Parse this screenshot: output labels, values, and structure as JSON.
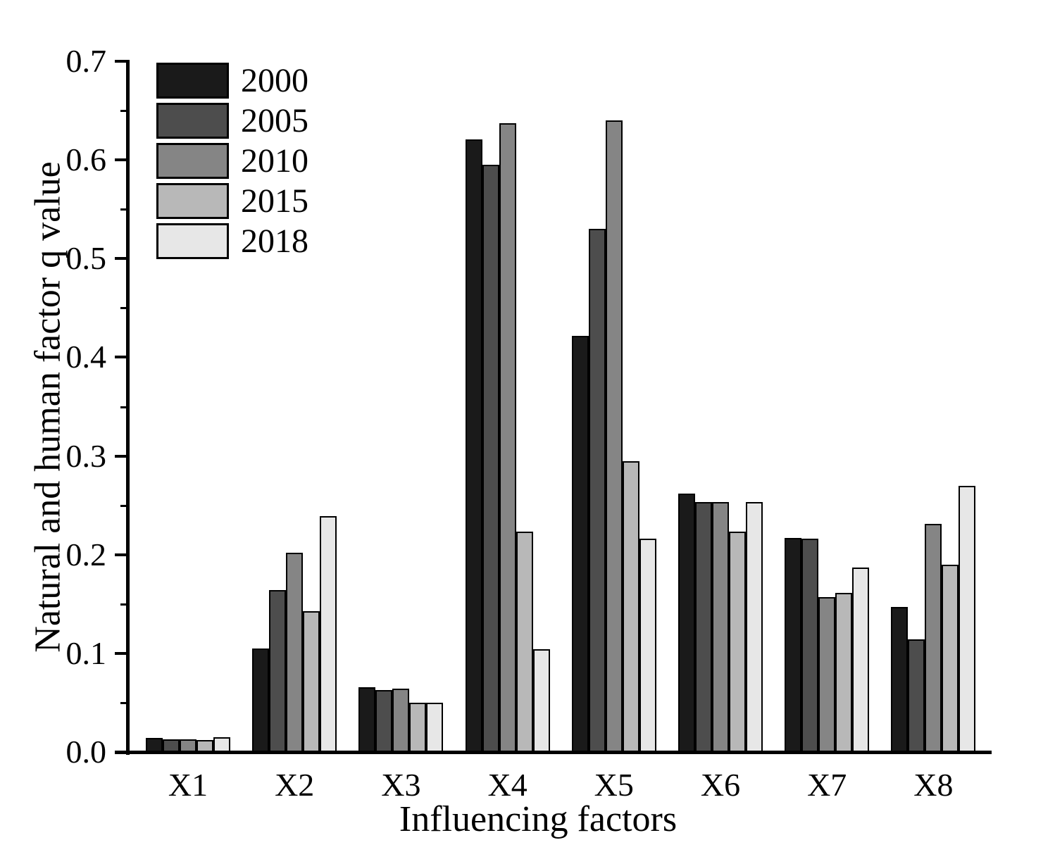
{
  "chart_data": {
    "type": "bar",
    "title": "",
    "xlabel": "Influencing factors",
    "ylabel": "Natural and human factor q value",
    "categories": [
      "X1",
      "X2",
      "X3",
      "X4",
      "X5",
      "X6",
      "X7",
      "X8"
    ],
    "series": [
      {
        "name": "2000",
        "color": "#1a1a1a",
        "values": [
          0.014,
          0.105,
          0.066,
          0.621,
          0.422,
          0.262,
          0.217,
          0.147
        ]
      },
      {
        "name": "2005",
        "color": "#4d4d4d",
        "values": [
          0.013,
          0.164,
          0.063,
          0.595,
          0.53,
          0.253,
          0.216,
          0.114
        ]
      },
      {
        "name": "2010",
        "color": "#858585",
        "values": [
          0.013,
          0.202,
          0.064,
          0.637,
          0.64,
          0.253,
          0.157,
          0.231
        ]
      },
      {
        "name": "2015",
        "color": "#b8b8b8",
        "values": [
          0.012,
          0.143,
          0.05,
          0.223,
          0.295,
          0.223,
          0.161,
          0.19
        ]
      },
      {
        "name": "2018",
        "color": "#e7e7e7",
        "values": [
          0.015,
          0.239,
          0.05,
          0.104,
          0.216,
          0.253,
          0.187,
          0.27
        ]
      }
    ],
    "ylim": [
      0.0,
      0.7
    ],
    "yticks": [
      0.0,
      0.1,
      0.2,
      0.3,
      0.4,
      0.5,
      0.6,
      0.7
    ],
    "ytick_labels": [
      "0.0",
      "0.1",
      "0.2",
      "0.3",
      "0.4",
      "0.5",
      "0.6",
      "0.7"
    ],
    "minor_tick_step": 0.05,
    "grid": false,
    "legend_position": "upper-left",
    "bar_border_color": "#000000",
    "axis_color": "#000000",
    "background_color": "#ffffff"
  }
}
